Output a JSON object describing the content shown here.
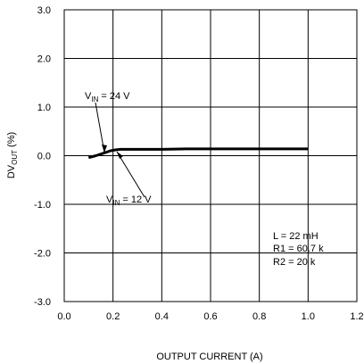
{
  "chart_data": {
    "type": "line",
    "xlabel": "OUTPUT CURRENT (A)",
    "ylabel": {
      "main": "DV",
      "sub": "OUT",
      "unit": " (%)"
    },
    "xlim": [
      0.0,
      1.2
    ],
    "ylim": [
      -3.0,
      3.0
    ],
    "grid": true,
    "xticks": [
      "0.0",
      "0.2",
      "0.4",
      "0.6",
      "0.8",
      "1.0",
      "1.2"
    ],
    "yticks": [
      "3.0",
      "2.0",
      "1.0",
      "0.0",
      "-1.0",
      "-2.0",
      "-3.0"
    ],
    "series": [
      {
        "x": [
          0.1,
          0.13,
          0.16,
          0.19,
          0.21,
          0.23,
          0.25,
          0.3,
          0.4,
          0.5,
          0.6,
          0.7,
          0.8,
          0.9,
          1.0
        ],
        "y": [
          -0.04,
          0.0,
          0.05,
          0.1,
          0.12,
          0.13,
          0.13,
          0.13,
          0.13,
          0.14,
          0.14,
          0.14,
          0.14,
          0.14,
          0.14
        ]
      }
    ],
    "annotations": [
      {
        "main": "V",
        "sub": "IN",
        "rest": " = 24 V"
      },
      {
        "main": "V",
        "sub": "IN",
        "rest": " = 12 V"
      }
    ],
    "params": [
      "L = 22 mH",
      "R1 = 60.7 k",
      "R2 = 20 k"
    ]
  }
}
